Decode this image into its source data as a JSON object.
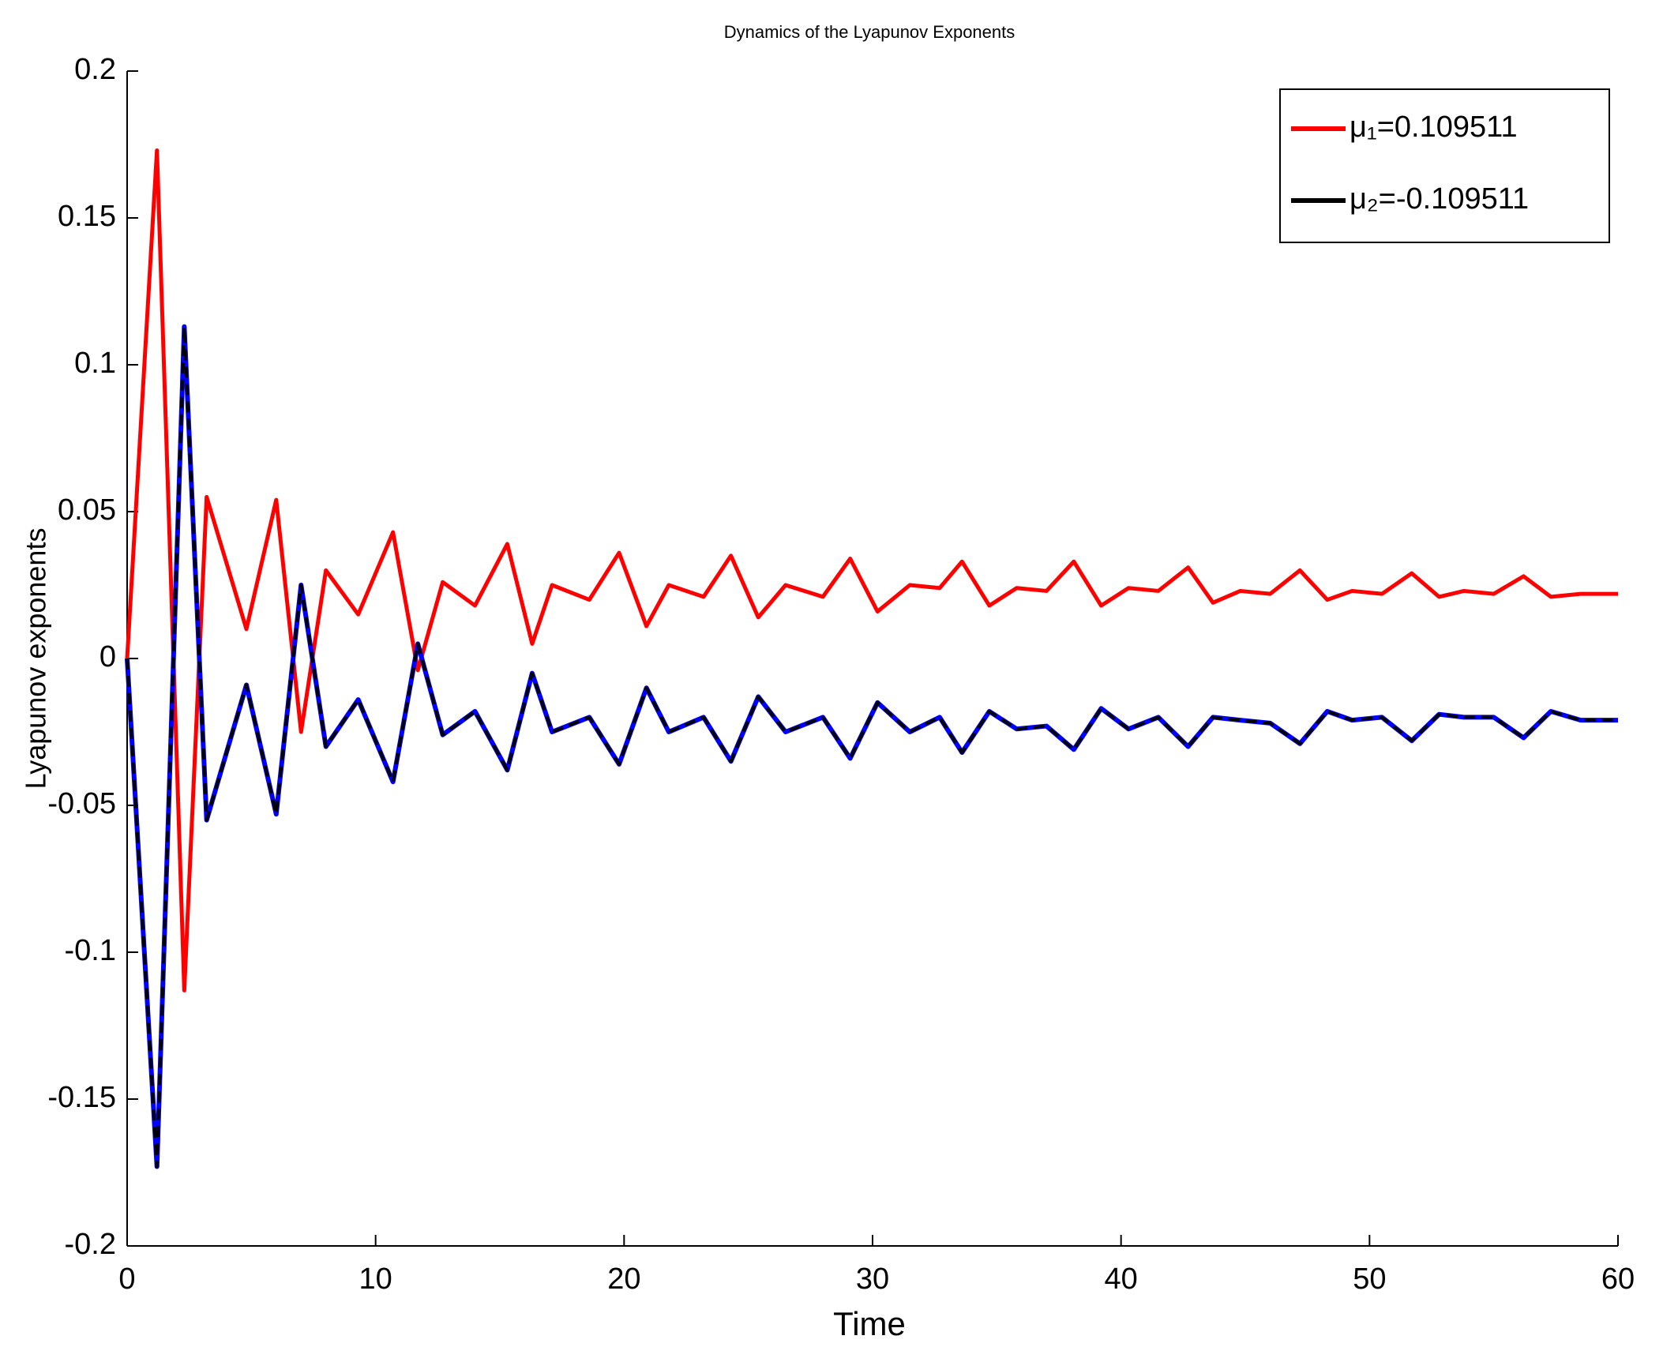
{
  "chart_data": {
    "type": "line",
    "title": "Dynamics of the Lyapunov Exponents",
    "x_label": "Time",
    "y_label": "Lyapunov exponents",
    "x": [
      0,
      1.2,
      2.3,
      3.2,
      4.8,
      6.0,
      7.0,
      8.0,
      9.3,
      10.7,
      11.7,
      12.7,
      14.0,
      15.3,
      16.3,
      17.1,
      18.6,
      19.8,
      20.9,
      21.8,
      23.2,
      24.3,
      25.4,
      26.5,
      28.0,
      29.1,
      30.2,
      31.5,
      32.7,
      33.6,
      34.7,
      35.8,
      37.0,
      38.1,
      39.2,
      40.3,
      41.5,
      42.7,
      43.7,
      44.8,
      46.0,
      47.2,
      48.3,
      49.3,
      50.5,
      51.7,
      52.8,
      53.8,
      55.0,
      56.2,
      57.3,
      58.5,
      60
    ],
    "series": [
      {
        "name": "μ₁=0.109511",
        "color": "#ff0000",
        "line_style": "solid",
        "values": [
          0,
          0.173,
          -0.113,
          0.055,
          0.01,
          0.054,
          -0.025,
          0.03,
          0.015,
          0.043,
          -0.004,
          0.026,
          0.018,
          0.039,
          0.005,
          0.025,
          0.02,
          0.036,
          0.011,
          0.025,
          0.021,
          0.035,
          0.014,
          0.025,
          0.021,
          0.034,
          0.016,
          0.025,
          0.024,
          0.033,
          0.018,
          0.024,
          0.023,
          0.033,
          0.018,
          0.024,
          0.023,
          0.031,
          0.019,
          0.023,
          0.022,
          0.03,
          0.02,
          0.023,
          0.022,
          0.029,
          0.021,
          0.023,
          0.022,
          0.028,
          0.021,
          0.022,
          0.022
        ]
      },
      {
        "name": "μ₂=-0.109511",
        "color": "#000000",
        "line_style": "dashed",
        "under_color": "#0000ff",
        "values": [
          0,
          -0.173,
          0.113,
          -0.055,
          -0.009,
          -0.053,
          0.025,
          -0.03,
          -0.014,
          -0.042,
          0.005,
          -0.026,
          -0.018,
          -0.038,
          -0.005,
          -0.025,
          -0.02,
          -0.036,
          -0.01,
          -0.025,
          -0.02,
          -0.035,
          -0.013,
          -0.025,
          -0.02,
          -0.034,
          -0.015,
          -0.025,
          -0.02,
          -0.032,
          -0.018,
          -0.024,
          -0.023,
          -0.031,
          -0.017,
          -0.024,
          -0.02,
          -0.03,
          -0.02,
          -0.021,
          -0.022,
          -0.029,
          -0.018,
          -0.021,
          -0.02,
          -0.028,
          -0.019,
          -0.02,
          -0.02,
          -0.027,
          -0.018,
          -0.021,
          -0.021
        ]
      }
    ],
    "xlim": [
      0,
      60
    ],
    "xticks": [
      0,
      10,
      20,
      30,
      40,
      50,
      60
    ],
    "ylim": [
      -0.2,
      0.2
    ],
    "yticks": [
      -0.2,
      -0.15,
      -0.1,
      -0.05,
      0,
      0.05,
      0.1,
      0.15,
      0.2
    ],
    "grid": false,
    "legend": "upper right"
  }
}
